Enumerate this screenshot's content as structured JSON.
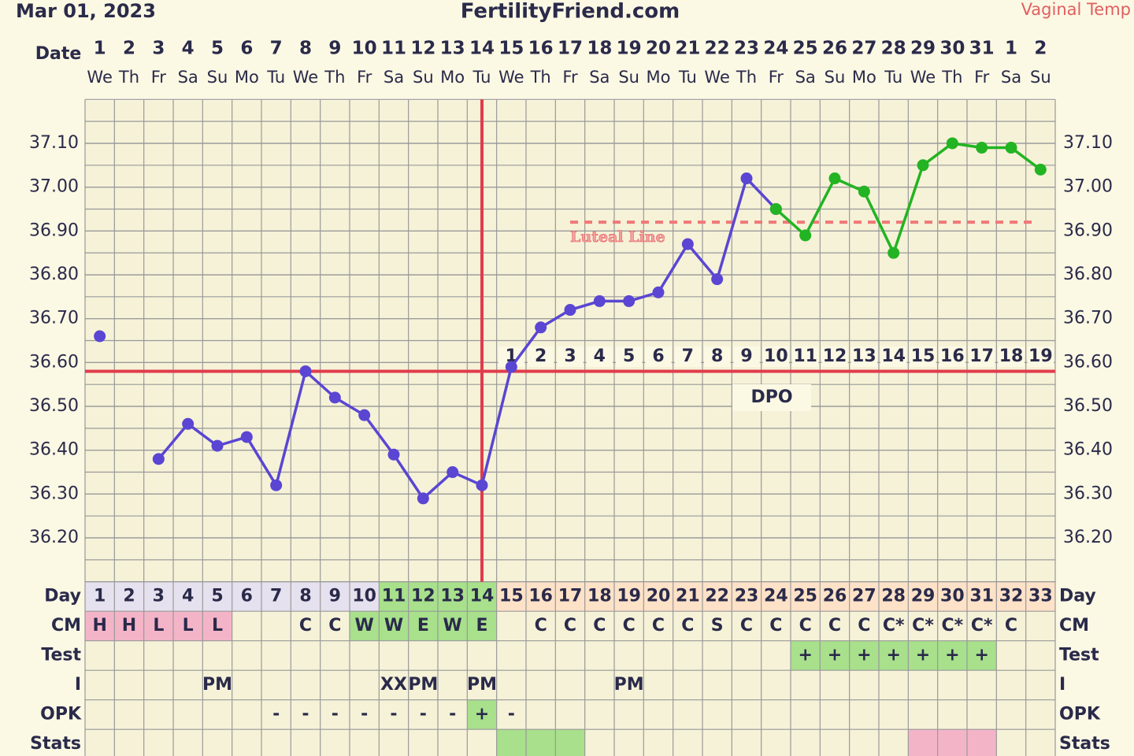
{
  "header": {
    "date": "Mar 01, 2023",
    "site": "FertilityFriend.com",
    "temp_type": "Vaginal Temp"
  },
  "chart_data": {
    "type": "line",
    "date_label": "Date",
    "categories": [
      "1",
      "2",
      "3",
      "4",
      "5",
      "6",
      "7",
      "8",
      "9",
      "10",
      "11",
      "12",
      "13",
      "14",
      "15",
      "16",
      "17",
      "18",
      "19",
      "20",
      "21",
      "22",
      "23",
      "24",
      "25",
      "26",
      "27",
      "28",
      "29",
      "30",
      "31",
      "1",
      "2"
    ],
    "weekdays": [
      "We",
      "Th",
      "Fr",
      "Sa",
      "Su",
      "Mo",
      "Tu",
      "We",
      "Th",
      "Fr",
      "Sa",
      "Su",
      "Mo",
      "Tu",
      "We",
      "Th",
      "Fr",
      "Sa",
      "Su",
      "Mo",
      "Tu",
      "We",
      "Th",
      "Fr",
      "Sa",
      "Su",
      "Mo",
      "Tu",
      "We",
      "Th",
      "Fr",
      "Sa",
      "Su"
    ],
    "series": [
      {
        "color": "#5a46d2",
        "values": [
          36.66,
          null,
          36.38,
          36.46,
          36.41,
          36.43,
          36.32,
          36.58,
          36.52,
          36.48,
          36.39,
          36.29,
          36.35,
          36.32,
          36.59,
          36.68,
          36.72,
          36.74,
          36.74,
          36.76,
          36.87,
          36.79,
          37.02,
          36.95,
          null,
          null,
          null,
          null,
          null,
          null,
          null,
          null,
          null
        ]
      },
      {
        "color": "#22b422",
        "values": [
          null,
          null,
          null,
          null,
          null,
          null,
          null,
          null,
          null,
          null,
          null,
          null,
          null,
          null,
          null,
          null,
          null,
          null,
          null,
          null,
          null,
          null,
          null,
          36.95,
          36.89,
          37.02,
          36.99,
          36.85,
          37.05,
          37.1,
          37.09,
          37.09,
          37.04
        ]
      }
    ],
    "ylim": [
      36.1,
      37.2
    ],
    "yticks": [
      {
        "value": 36.2,
        "label": "36.20"
      },
      {
        "value": 36.3,
        "label": "36.30"
      },
      {
        "value": 36.4,
        "label": "36.40"
      },
      {
        "value": 36.5,
        "label": "36.50"
      },
      {
        "value": 36.6,
        "label": "36.60"
      },
      {
        "value": 36.7,
        "label": "36.70"
      },
      {
        "value": 36.8,
        "label": "36.80"
      },
      {
        "value": 36.9,
        "label": "36.90"
      },
      {
        "value": 37.0,
        "label": "37.00"
      },
      {
        "value": 37.1,
        "label": "37.10"
      }
    ],
    "grid": true,
    "coverline": 36.58,
    "line_color": "#e03c4c",
    "ovulation_day": 14,
    "luteal_line": {
      "value": 36.92,
      "label": "Luteal Line",
      "start_day": 17,
      "end_day": 33,
      "color": "#f07878"
    },
    "dpo_label": "DPO",
    "dpo": [
      null,
      null,
      null,
      null,
      null,
      null,
      null,
      null,
      null,
      null,
      null,
      null,
      null,
      null,
      1,
      2,
      3,
      4,
      5,
      6,
      7,
      8,
      9,
      10,
      11,
      12,
      13,
      14,
      15,
      16,
      17,
      18,
      19
    ]
  },
  "table": {
    "rows": [
      {
        "label": "Day",
        "cells": [
          1,
          2,
          3,
          4,
          5,
          6,
          7,
          8,
          9,
          10,
          11,
          12,
          13,
          14,
          15,
          16,
          17,
          18,
          19,
          20,
          21,
          22,
          23,
          24,
          25,
          26,
          27,
          28,
          29,
          30,
          31,
          32,
          33
        ],
        "colors": [
          "#e6e1ee",
          "#e6e1ee",
          "#e6e1ee",
          "#e6e1ee",
          "#e6e1ee",
          "#e6e1ee",
          "#e6e1ee",
          "#e6e1ee",
          "#e6e1ee",
          "#e6e1ee",
          "#a8e08c",
          "#a8e08c",
          "#a8e08c",
          "#a8e08c",
          "#fde2c8",
          "#fde2c8",
          "#fde2c8",
          "#fde2c8",
          "#fde2c8",
          "#fde2c8",
          "#fde2c8",
          "#fde2c8",
          "#fde2c8",
          "#fde2c8",
          "#fde2c8",
          "#fde2c8",
          "#fde2c8",
          "#fde2c8",
          "#fde2c8",
          "#fde2c8",
          "#fde2c8",
          "#fde2c8",
          "#fde2c8"
        ]
      },
      {
        "label": "CM",
        "cells": [
          "H",
          "H",
          "L",
          "L",
          "L",
          null,
          null,
          "C",
          "C",
          "W",
          "W",
          "E",
          "W",
          "E",
          null,
          "C",
          "C",
          "C",
          "C",
          "C",
          "C",
          "S",
          "C",
          "C",
          "C",
          "C",
          "C",
          "C*",
          "C*",
          "C*",
          "C*",
          "C",
          null
        ],
        "colors": [
          "#f4b4c8",
          "#f4b4c8",
          "#f4b4c8",
          "#f4b4c8",
          "#f4b4c8",
          null,
          null,
          null,
          null,
          "#a8e08c",
          "#a8e08c",
          "#a8e08c",
          "#a8e08c",
          "#a8e08c",
          null,
          null,
          null,
          null,
          null,
          null,
          null,
          null,
          null,
          null,
          null,
          null,
          null,
          null,
          null,
          null,
          null,
          null,
          null
        ]
      },
      {
        "label": "Test",
        "cells": [
          null,
          null,
          null,
          null,
          null,
          null,
          null,
          null,
          null,
          null,
          null,
          null,
          null,
          null,
          null,
          null,
          null,
          null,
          null,
          null,
          null,
          null,
          null,
          null,
          "+",
          "+",
          "+",
          "+",
          "+",
          "+",
          "+",
          null,
          null
        ],
        "colors": [
          null,
          null,
          null,
          null,
          null,
          null,
          null,
          null,
          null,
          null,
          null,
          null,
          null,
          null,
          null,
          null,
          null,
          null,
          null,
          null,
          null,
          null,
          null,
          null,
          "#a8e08c",
          "#a8e08c",
          "#a8e08c",
          "#a8e08c",
          "#a8e08c",
          "#a8e08c",
          "#a8e08c",
          null,
          null
        ]
      },
      {
        "label": "I",
        "cells": [
          null,
          null,
          null,
          null,
          "PM",
          null,
          null,
          null,
          null,
          null,
          "XX",
          "PM",
          null,
          "PM",
          null,
          null,
          null,
          null,
          "PM",
          null,
          null,
          null,
          null,
          null,
          null,
          null,
          null,
          null,
          null,
          null,
          null,
          null,
          null
        ],
        "colors": null
      },
      {
        "label": "OPK",
        "cells": [
          null,
          null,
          null,
          null,
          null,
          null,
          "-",
          "-",
          "-",
          "-",
          "-",
          "-",
          "-",
          "+",
          "-",
          null,
          null,
          null,
          null,
          null,
          null,
          null,
          null,
          null,
          null,
          null,
          null,
          null,
          null,
          null,
          null,
          null,
          null
        ],
        "colors": [
          null,
          null,
          null,
          null,
          null,
          null,
          null,
          null,
          null,
          null,
          null,
          null,
          null,
          "#a8e08c",
          null,
          null,
          null,
          null,
          null,
          null,
          null,
          null,
          null,
          null,
          null,
          null,
          null,
          null,
          null,
          null,
          null,
          null,
          null
        ]
      },
      {
        "label": "Stats",
        "cells": null,
        "colors": [
          null,
          null,
          null,
          null,
          null,
          null,
          null,
          null,
          null,
          null,
          null,
          null,
          null,
          null,
          "#a8e08c",
          "#a8e08c",
          "#a8e08c",
          null,
          null,
          null,
          null,
          null,
          null,
          null,
          null,
          null,
          null,
          null,
          "#f4b4c8",
          "#f4b4c8",
          "#f4b4c8",
          null,
          null
        ]
      }
    ]
  }
}
